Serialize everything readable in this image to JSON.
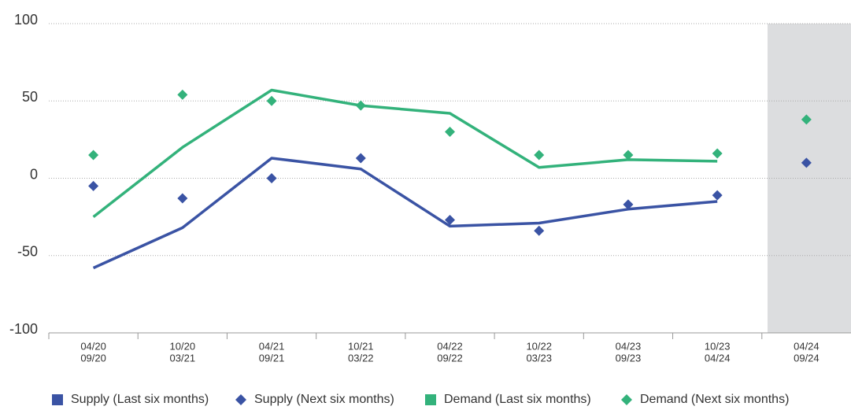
{
  "chart_data": {
    "type": "line",
    "categories": [
      [
        "04/20",
        "09/20"
      ],
      [
        "10/20",
        "03/21"
      ],
      [
        "04/21",
        "09/21"
      ],
      [
        "10/21",
        "03/22"
      ],
      [
        "04/22",
        "09/22"
      ],
      [
        "10/22",
        "03/23"
      ],
      [
        "04/23",
        "09/23"
      ],
      [
        "10/23",
        "04/24"
      ],
      [
        "04/24",
        "09/24"
      ]
    ],
    "series": [
      {
        "name": "Supply (Last six months)",
        "color": "#3a53a4",
        "style": "line",
        "values": [
          -58,
          -32,
          13,
          6,
          -31,
          -29,
          -20,
          -15,
          null
        ]
      },
      {
        "name": "Supply (Next six months)",
        "color": "#3a53a4",
        "style": "diamond",
        "values": [
          -5,
          -13,
          0,
          13,
          -27,
          -34,
          -17,
          -11,
          10
        ]
      },
      {
        "name": "Demand (Last six months)",
        "color": "#33b27b",
        "style": "line",
        "values": [
          -25,
          20,
          57,
          47,
          42,
          7,
          12,
          11,
          null
        ]
      },
      {
        "name": "Demand (Next six months)",
        "color": "#33b27b",
        "style": "diamond",
        "values": [
          15,
          54,
          50,
          47,
          30,
          15,
          15,
          16,
          38
        ]
      }
    ],
    "ylim": [
      -100,
      100
    ],
    "yticks": [
      -100,
      -50,
      0,
      50,
      100
    ],
    "grid": true
  }
}
